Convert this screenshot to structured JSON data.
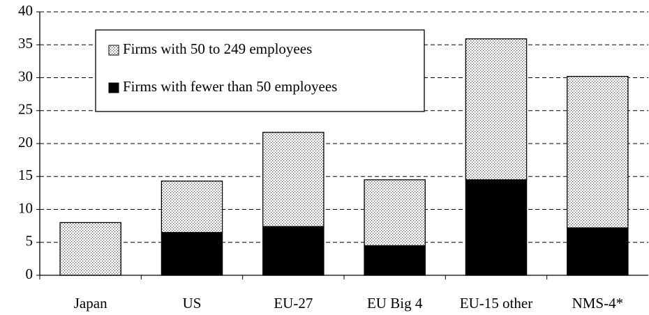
{
  "chart_data": {
    "type": "bar",
    "stacked": true,
    "categories": [
      "Japan",
      "US",
      "EU-27",
      "EU Big 4",
      "EU-15 other",
      "NMS-4*"
    ],
    "series": [
      {
        "name": "Firms with fewer than 50 employees",
        "color": "#000000",
        "values": [
          0,
          6.5,
          7.4,
          4.5,
          14.5,
          7.2
        ]
      },
      {
        "name": "Firms with 50 to 249 employees",
        "color": "dotted",
        "values": [
          8,
          7.8,
          14.3,
          10.0,
          21.4,
          23.0
        ]
      }
    ],
    "ylim": [
      0,
      40
    ],
    "yticks": [
      0,
      5,
      10,
      15,
      20,
      25,
      30,
      35,
      40
    ],
    "grid": true
  }
}
